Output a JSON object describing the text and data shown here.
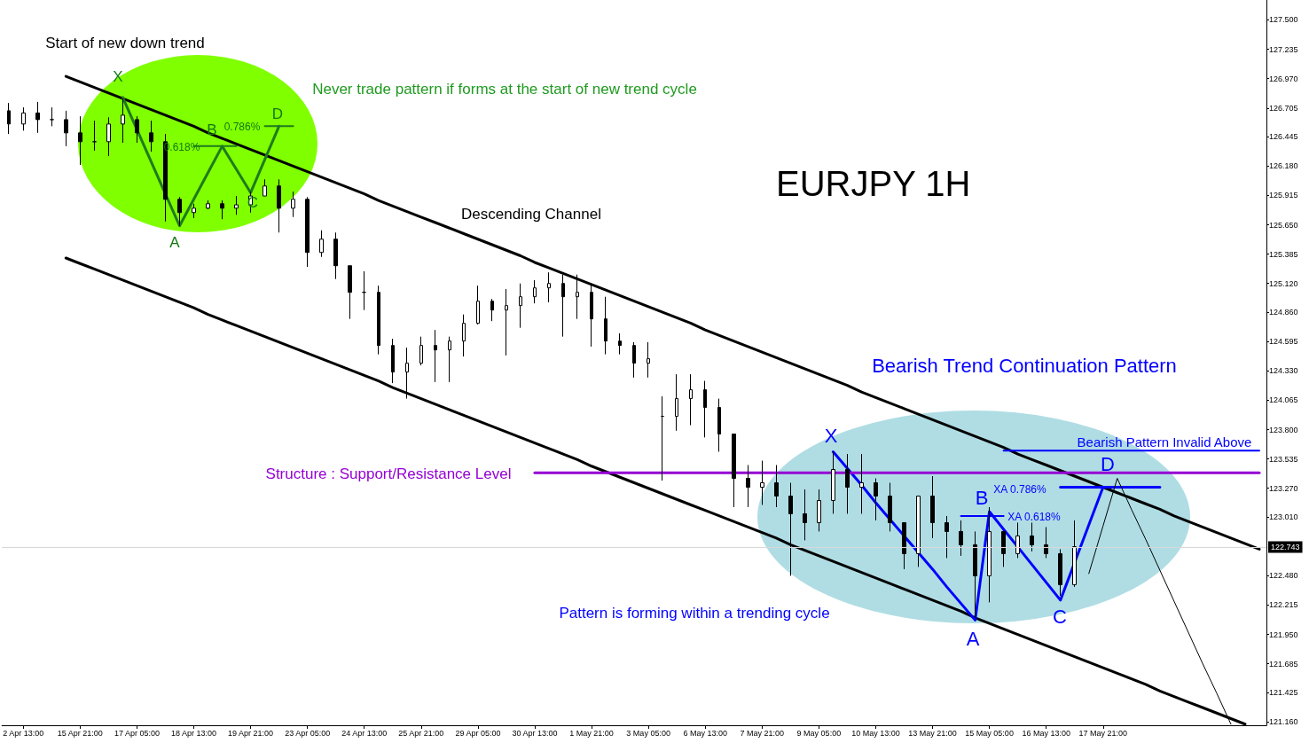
{
  "chart_data": {
    "type": "candlestick",
    "title": "EURJPY 1H",
    "color": "#000000",
    "marker": "none",
    "categories": [
      null,
      "2 Apr 13:00",
      null,
      null,
      null,
      "15 Apr 21:00",
      null,
      null,
      null,
      "17 Apr 05:00",
      null,
      null,
      null,
      "18 Apr 13:00",
      null,
      null,
      null,
      "19 Apr 21:00",
      null,
      null,
      null,
      "23 Apr 05:00",
      null,
      null,
      null,
      "24 Apr 13:00",
      null,
      null,
      null,
      "25 Apr 21:00",
      null,
      null,
      null,
      "29 Apr 05:00",
      null,
      null,
      null,
      "30 Apr 13:00",
      null,
      null,
      null,
      "1 May 21:00",
      null,
      null,
      null,
      "3 May 05:00",
      null,
      null,
      null,
      "6 May 13:00",
      null,
      null,
      null,
      "7 May 21:00",
      null,
      null,
      null,
      "9 May 05:00",
      null,
      null,
      null,
      "10 May 13:00",
      null,
      null,
      null,
      "13 May 21:00",
      null,
      null,
      null,
      "15 May 05:00",
      null,
      null,
      null,
      "16 May 13:00",
      null,
      null,
      null,
      "17 May 21:00",
      null,
      null,
      null,
      null,
      null,
      null,
      null,
      null,
      null,
      null,
      null
    ],
    "ohlc": [
      [
        126.68,
        126.75,
        126.47,
        126.56
      ],
      [
        126.56,
        126.71,
        126.5,
        126.66
      ],
      [
        126.66,
        126.76,
        126.48,
        126.6
      ],
      [
        126.6,
        126.71,
        126.54,
        126.6
      ],
      [
        126.6,
        126.68,
        126.36,
        126.48
      ],
      [
        126.48,
        126.63,
        126.19,
        126.4
      ],
      [
        126.4,
        126.59,
        126.32,
        126.4
      ],
      [
        126.4,
        126.62,
        126.27,
        126.56
      ],
      [
        126.56,
        126.79,
        126.39,
        126.64
      ],
      [
        126.6,
        126.63,
        126.39,
        126.48
      ],
      [
        126.48,
        126.59,
        126.31,
        126.4
      ],
      [
        126.4,
        126.47,
        125.68,
        125.88
      ],
      [
        125.88,
        125.9,
        125.64,
        125.76
      ],
      [
        125.76,
        125.84,
        125.71,
        125.8
      ],
      [
        125.8,
        125.87,
        125.79,
        125.84
      ],
      [
        125.84,
        125.87,
        125.7,
        125.8
      ],
      [
        125.8,
        125.91,
        125.74,
        125.83
      ],
      [
        125.83,
        125.95,
        125.76,
        125.91
      ],
      [
        125.91,
        126.06,
        125.91,
        126.0
      ],
      [
        126.0,
        126.06,
        125.58,
        125.8
      ],
      [
        125.8,
        125.95,
        125.72,
        125.88
      ],
      [
        125.88,
        125.9,
        125.27,
        125.4
      ],
      [
        125.4,
        125.6,
        125.36,
        125.52
      ],
      [
        125.52,
        125.58,
        125.16,
        125.28
      ],
      [
        125.28,
        125.28,
        124.8,
        125.04
      ],
      [
        125.04,
        125.23,
        124.88,
        125.04
      ],
      [
        125.04,
        125.1,
        124.48,
        124.56
      ],
      [
        124.56,
        124.62,
        124.22,
        124.32
      ],
      [
        124.32,
        124.54,
        124.08,
        124.4
      ],
      [
        124.4,
        124.64,
        124.38,
        124.56
      ],
      [
        124.56,
        124.7,
        124.23,
        124.52
      ],
      [
        124.52,
        124.64,
        124.23,
        124.6
      ],
      [
        124.6,
        124.84,
        124.46,
        124.76
      ],
      [
        124.76,
        125.1,
        124.75,
        124.96
      ],
      [
        124.96,
        124.98,
        124.78,
        124.88
      ],
      [
        124.88,
        125.07,
        124.47,
        124.92
      ],
      [
        124.92,
        125.12,
        124.72,
        125.0
      ],
      [
        125.0,
        125.15,
        124.94,
        125.08
      ],
      [
        125.08,
        125.22,
        124.95,
        125.12
      ],
      [
        125.12,
        125.2,
        124.64,
        125.0
      ],
      [
        125.0,
        125.2,
        124.8,
        125.04
      ],
      [
        125.04,
        125.12,
        124.55,
        124.8
      ],
      [
        124.8,
        125.0,
        124.48,
        124.6
      ],
      [
        124.6,
        124.67,
        124.48,
        124.56
      ],
      [
        124.56,
        124.59,
        124.27,
        124.4
      ],
      [
        124.4,
        124.59,
        124.27,
        124.44
      ],
      [
        123.92,
        124.1,
        123.34,
        123.92
      ],
      [
        123.92,
        124.3,
        123.79,
        124.08
      ],
      [
        124.08,
        124.3,
        123.84,
        124.16
      ],
      [
        124.16,
        124.24,
        123.73,
        124.0
      ],
      [
        124.0,
        124.08,
        123.6,
        123.76
      ],
      [
        123.76,
        123.76,
        123.1,
        123.36
      ],
      [
        123.36,
        123.48,
        123.1,
        123.28
      ],
      [
        123.28,
        123.52,
        123.12,
        123.32
      ],
      [
        123.32,
        123.48,
        123.1,
        123.2
      ],
      [
        123.2,
        123.32,
        122.48,
        123.04
      ],
      [
        123.04,
        123.26,
        122.8,
        122.96
      ],
      [
        122.96,
        123.26,
        122.88,
        123.16
      ],
      [
        123.16,
        123.6,
        123.04,
        123.44
      ],
      [
        123.44,
        123.58,
        123.04,
        123.28
      ],
      [
        123.28,
        123.58,
        123.04,
        123.32
      ],
      [
        123.32,
        123.36,
        122.98,
        123.2
      ],
      [
        123.2,
        123.32,
        122.88,
        122.96
      ],
      [
        122.96,
        122.96,
        122.54,
        122.68
      ],
      [
        122.68,
        123.2,
        122.56,
        123.2
      ],
      [
        123.2,
        123.38,
        122.82,
        122.96
      ],
      [
        122.96,
        123.02,
        122.64,
        122.88
      ],
      [
        122.88,
        122.98,
        122.66,
        122.76
      ],
      [
        122.76,
        122.88,
        122.1,
        122.48
      ],
      [
        122.48,
        123.1,
        122.24,
        122.88
      ],
      [
        122.88,
        122.88,
        122.56,
        122.68
      ],
      [
        122.68,
        122.96,
        122.64,
        122.84
      ],
      [
        122.84,
        122.96,
        122.7,
        122.76
      ],
      [
        122.76,
        122.92,
        122.64,
        122.68
      ],
      [
        122.68,
        122.72,
        122.3,
        122.4
      ],
      [
        122.4,
        122.98,
        122.38,
        122.743
      ],
      null,
      null,
      null,
      null,
      null,
      null,
      null,
      null,
      null,
      null,
      null,
      null,
      null
    ],
    "ylim": [
      121.13,
      127.68
    ],
    "yticks": [
      {
        "value": 121.16,
        "label": "121.160"
      },
      {
        "value": 121.425,
        "label": "121.425"
      },
      {
        "value": 121.685,
        "label": "121.685"
      },
      {
        "value": 121.95,
        "label": "121.950"
      },
      {
        "value": 122.215,
        "label": "122.215"
      },
      {
        "value": 122.48,
        "label": "122.480"
      },
      {
        "value": 123.01,
        "label": "123.010"
      },
      {
        "value": 123.27,
        "label": "123.270"
      },
      {
        "value": 123.535,
        "label": "123.535"
      },
      {
        "value": 123.8,
        "label": "123.800"
      },
      {
        "value": 124.065,
        "label": "124.065"
      },
      {
        "value": 124.33,
        "label": "124.330"
      },
      {
        "value": 124.595,
        "label": "124.595"
      },
      {
        "value": 124.86,
        "label": "124.860"
      },
      {
        "value": 125.12,
        "label": "125.120"
      },
      {
        "value": 125.385,
        "label": "125.385"
      },
      {
        "value": 125.65,
        "label": "125.650"
      },
      {
        "value": 125.915,
        "label": "125.915"
      },
      {
        "value": 126.18,
        "label": "126.180"
      },
      {
        "value": 126.445,
        "label": "126.445"
      },
      {
        "value": 126.705,
        "label": "126.705"
      },
      {
        "value": 126.97,
        "label": "126.970"
      },
      {
        "value": 127.235,
        "label": "127.235"
      },
      {
        "value": 127.5,
        "label": "127.500"
      }
    ],
    "series": [
      {
        "type": "line",
        "color": "#000000",
        "values": [
          null,
          null,
          null,
          null,
          126.99,
          126.94,
          126.89,
          126.84,
          126.79,
          126.74,
          126.69,
          126.64,
          126.59,
          126.54,
          126.48,
          126.43,
          126.38,
          126.33,
          126.28,
          126.23,
          126.18,
          126.13,
          126.08,
          126.03,
          125.98,
          125.93,
          125.87,
          125.82,
          125.77,
          125.72,
          125.67,
          125.62,
          125.57,
          125.52,
          125.47,
          125.42,
          125.37,
          125.31,
          125.26,
          125.21,
          125.16,
          125.11,
          125.06,
          125.01,
          124.96,
          124.91,
          124.86,
          124.81,
          124.76,
          124.7,
          124.65,
          124.6,
          124.55,
          124.5,
          124.45,
          124.4,
          124.35,
          124.3,
          124.25,
          124.2,
          124.14,
          124.09,
          124.04,
          123.99,
          123.94,
          123.89,
          123.84,
          123.79,
          123.74,
          123.69,
          123.64,
          123.58,
          123.53,
          123.48,
          123.43,
          123.38,
          123.33,
          123.28,
          123.23,
          123.18,
          123.13,
          123.08,
          123.02,
          122.97,
          122.92,
          122.87,
          122.82,
          122.77,
          122.72
        ]
      },
      {
        "type": "line",
        "color": "#000000",
        "values": [
          null,
          null,
          null,
          null,
          125.35,
          125.3,
          125.25,
          125.2,
          125.15,
          125.1,
          125.05,
          125.0,
          124.95,
          124.9,
          124.84,
          124.79,
          124.74,
          124.69,
          124.64,
          124.59,
          124.54,
          124.49,
          124.44,
          124.39,
          124.34,
          124.29,
          124.24,
          124.18,
          124.13,
          124.08,
          124.03,
          123.98,
          123.93,
          123.88,
          123.83,
          123.78,
          123.73,
          123.68,
          123.63,
          123.58,
          123.53,
          123.47,
          123.42,
          123.37,
          123.32,
          123.27,
          123.22,
          123.17,
          123.12,
          123.07,
          123.02,
          122.97,
          122.92,
          122.87,
          122.82,
          122.76,
          122.71,
          122.66,
          122.61,
          122.56,
          122.51,
          122.46,
          122.41,
          122.36,
          122.31,
          122.26,
          122.21,
          122.16,
          122.1,
          122.05,
          122.0,
          121.95,
          121.9,
          121.85,
          121.8,
          121.75,
          121.7,
          121.65,
          121.6,
          121.55,
          121.5,
          121.44,
          121.39,
          121.34,
          121.29,
          121.24,
          121.19,
          121.14,
          null
        ]
      },
      {
        "type": "line",
        "color": "#1e7b1e",
        "values": [
          null,
          null,
          null,
          null,
          null,
          null,
          null,
          null,
          126.8,
          126.51,
          126.22,
          125.93,
          125.64,
          125.88,
          126.12,
          126.36,
          126.15,
          125.94,
          126.24,
          126.54,
          null,
          null,
          null,
          null,
          null,
          null,
          null,
          null,
          null,
          null,
          null,
          null,
          null,
          null,
          null,
          null,
          null,
          null,
          null,
          null,
          null,
          null,
          null,
          null,
          null,
          null,
          null,
          null,
          null,
          null,
          null,
          null,
          null,
          null,
          null,
          null,
          null,
          null,
          null,
          null,
          null,
          null,
          null,
          null,
          null,
          null,
          null,
          null,
          null,
          null,
          null,
          null,
          null,
          null,
          null,
          null,
          null,
          null,
          null,
          null,
          null,
          null,
          null,
          null,
          null,
          null,
          null,
          null,
          null
        ]
      },
      {
        "type": "line",
        "color": "#1e7b1e",
        "values": [
          null,
          null,
          null,
          null,
          null,
          null,
          null,
          null,
          null,
          null,
          null,
          null,
          null,
          126.36,
          126.36,
          126.36,
          126.36,
          null,
          null,
          null,
          null,
          null,
          null,
          null,
          null,
          null,
          null,
          null,
          null,
          null,
          null,
          null,
          null,
          null,
          null,
          null,
          null,
          null,
          null,
          null,
          null,
          null,
          null,
          null,
          null,
          null,
          null,
          null,
          null,
          null,
          null,
          null,
          null,
          null,
          null,
          null,
          null,
          null,
          null,
          null,
          null,
          null,
          null,
          null,
          null,
          null,
          null,
          null,
          null,
          null,
          null,
          null,
          null,
          null,
          null,
          null,
          null,
          null,
          null,
          null,
          null,
          null,
          null,
          null,
          null,
          null,
          null,
          null,
          null
        ]
      },
      {
        "type": "line",
        "color": "#1e7b1e",
        "values": [
          null,
          null,
          null,
          null,
          null,
          null,
          null,
          null,
          null,
          null,
          null,
          null,
          null,
          null,
          null,
          null,
          null,
          null,
          126.54,
          126.54,
          126.54,
          null,
          null,
          null,
          null,
          null,
          null,
          null,
          null,
          null,
          null,
          null,
          null,
          null,
          null,
          null,
          null,
          null,
          null,
          null,
          null,
          null,
          null,
          null,
          null,
          null,
          null,
          null,
          null,
          null,
          null,
          null,
          null,
          null,
          null,
          null,
          null,
          null,
          null,
          null,
          null,
          null,
          null,
          null,
          null,
          null,
          null,
          null,
          null,
          null,
          null,
          null,
          null,
          null,
          null,
          null,
          null,
          null,
          null,
          null,
          null,
          null,
          null,
          null,
          null,
          null,
          null,
          null,
          null
        ]
      },
      {
        "type": "line",
        "color": "#0000ff",
        "values": [
          null,
          null,
          null,
          null,
          null,
          null,
          null,
          null,
          null,
          null,
          null,
          null,
          null,
          null,
          null,
          null,
          null,
          null,
          null,
          null,
          null,
          null,
          null,
          null,
          null,
          null,
          null,
          null,
          null,
          null,
          null,
          null,
          null,
          null,
          null,
          null,
          null,
          null,
          null,
          null,
          null,
          null,
          null,
          null,
          null,
          null,
          null,
          null,
          null,
          null,
          null,
          null,
          null,
          null,
          null,
          null,
          null,
          null,
          123.6,
          123.45,
          123.3,
          123.14,
          122.99,
          122.84,
          122.69,
          122.54,
          122.38,
          122.23,
          122.08,
          123.06,
          122.9,
          122.74,
          122.58,
          122.42,
          122.26,
          122.6,
          122.94,
          123.28,
          null,
          null,
          null,
          null,
          null,
          null,
          null,
          null,
          null,
          null,
          null
        ]
      },
      {
        "type": "line",
        "color": "#0000ff",
        "values": [
          null,
          null,
          null,
          null,
          null,
          null,
          null,
          null,
          null,
          null,
          null,
          null,
          null,
          null,
          null,
          null,
          null,
          null,
          null,
          null,
          null,
          null,
          null,
          null,
          null,
          null,
          null,
          null,
          null,
          null,
          null,
          null,
          null,
          null,
          null,
          null,
          null,
          null,
          null,
          null,
          null,
          null,
          null,
          null,
          null,
          null,
          null,
          null,
          null,
          null,
          null,
          null,
          null,
          null,
          null,
          null,
          null,
          null,
          null,
          null,
          null,
          null,
          null,
          null,
          null,
          null,
          null,
          123.02,
          123.02,
          123.02,
          123.02,
          null,
          null,
          null,
          null,
          null,
          null,
          null,
          null,
          null,
          null,
          null,
          null,
          null,
          null,
          null,
          null,
          null,
          null
        ]
      },
      {
        "type": "line",
        "color": "#0000ff",
        "values": [
          null,
          null,
          null,
          null,
          null,
          null,
          null,
          null,
          null,
          null,
          null,
          null,
          null,
          null,
          null,
          null,
          null,
          null,
          null,
          null,
          null,
          null,
          null,
          null,
          null,
          null,
          null,
          null,
          null,
          null,
          null,
          null,
          null,
          null,
          null,
          null,
          null,
          null,
          null,
          null,
          null,
          null,
          null,
          null,
          null,
          null,
          null,
          null,
          null,
          null,
          null,
          null,
          null,
          null,
          null,
          null,
          null,
          null,
          null,
          null,
          null,
          null,
          null,
          null,
          null,
          null,
          null,
          null,
          null,
          null,
          null,
          null,
          null,
          null,
          123.28,
          123.28,
          123.28,
          123.28,
          123.28,
          123.28,
          123.28,
          123.28,
          null,
          null,
          null,
          null,
          null,
          null,
          null
        ]
      },
      {
        "type": "line",
        "color": "#0000ff",
        "values": [
          null,
          null,
          null,
          null,
          null,
          null,
          null,
          null,
          null,
          null,
          null,
          null,
          null,
          null,
          null,
          null,
          null,
          null,
          null,
          null,
          null,
          null,
          null,
          null,
          null,
          null,
          null,
          null,
          null,
          null,
          null,
          null,
          null,
          null,
          null,
          null,
          null,
          null,
          null,
          null,
          null,
          null,
          null,
          null,
          null,
          null,
          null,
          null,
          null,
          null,
          null,
          null,
          null,
          null,
          null,
          null,
          null,
          null,
          null,
          null,
          null,
          null,
          null,
          null,
          null,
          null,
          null,
          null,
          null,
          null,
          123.61,
          123.61,
          123.61,
          123.61,
          123.61,
          123.61,
          123.61,
          123.61,
          123.61,
          123.61,
          123.61,
          123.61,
          123.61,
          123.61,
          123.61,
          123.61,
          123.61,
          123.61,
          123.61
        ]
      },
      {
        "type": "line",
        "color": "#9400d3",
        "values": [
          null,
          null,
          null,
          null,
          null,
          null,
          null,
          null,
          null,
          null,
          null,
          null,
          null,
          null,
          null,
          null,
          null,
          null,
          null,
          null,
          null,
          null,
          null,
          null,
          null,
          null,
          null,
          null,
          null,
          null,
          null,
          null,
          null,
          null,
          null,
          null,
          null,
          123.41,
          123.41,
          123.41,
          123.41,
          123.41,
          123.41,
          123.41,
          123.41,
          123.41,
          123.41,
          123.41,
          123.41,
          123.41,
          123.41,
          123.41,
          123.41,
          123.41,
          123.41,
          123.41,
          123.41,
          123.41,
          123.41,
          123.41,
          123.41,
          123.41,
          123.41,
          123.41,
          123.41,
          123.41,
          123.41,
          123.41,
          123.41,
          123.41,
          123.41,
          123.41,
          123.41,
          123.41,
          123.41,
          123.41,
          123.41,
          123.41,
          123.41,
          123.41,
          123.41,
          123.41,
          123.41,
          123.41,
          123.41,
          123.41,
          123.41,
          123.41,
          123.41
        ]
      },
      {
        "type": "line",
        "color": "#000000",
        "values": [
          null,
          null,
          null,
          null,
          null,
          null,
          null,
          null,
          null,
          null,
          null,
          null,
          null,
          null,
          null,
          null,
          null,
          null,
          null,
          null,
          null,
          null,
          null,
          null,
          null,
          null,
          null,
          null,
          null,
          null,
          null,
          null,
          null,
          null,
          null,
          null,
          null,
          null,
          null,
          null,
          null,
          null,
          null,
          null,
          null,
          null,
          null,
          null,
          null,
          null,
          null,
          null,
          null,
          null,
          null,
          null,
          null,
          null,
          null,
          null,
          null,
          null,
          null,
          null,
          null,
          null,
          null,
          null,
          null,
          null,
          null,
          null,
          null,
          null,
          null,
          null,
          122.5,
          122.93,
          123.36,
          123.08,
          122.81,
          122.53,
          122.25,
          121.97,
          121.69,
          121.42,
          121.14,
          null,
          null
        ]
      }
    ],
    "ref_lines": [
      {
        "axis": "y",
        "value": 122.743,
        "label": "122.743",
        "color": "#d8d8d8"
      }
    ],
    "annotations": [
      "Start of new down trend",
      "Never trade pattern if forms at the start of new trend cycle",
      "Descending Channel",
      "Bearish Trend Continuation Pattern",
      "Pattern is forming within a trending cycle",
      "Structure : Support/Resistance Level",
      "X",
      "A",
      "B",
      "C",
      "D",
      "0.618%",
      "0.786%",
      "X",
      "A",
      "B",
      "C",
      "D",
      "XA 0.786%",
      "XA 0.618%",
      "Bearish Pattern Invalid Above"
    ]
  }
}
